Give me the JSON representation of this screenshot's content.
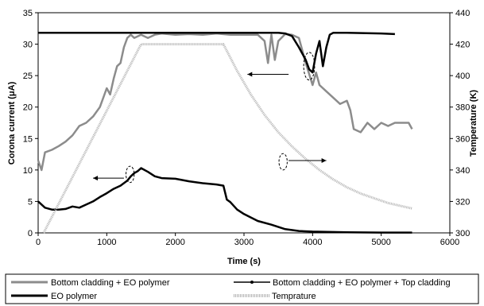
{
  "chart_data": {
    "type": "line",
    "x_label": "Time (s)",
    "y_left_label": "Corona current (μA)",
    "y_right_label": "Temperature (K)",
    "x_range": [
      0,
      6000
    ],
    "x_ticks": [
      "0",
      "1000",
      "2000",
      "3000",
      "4000",
      "5000",
      "6000"
    ],
    "y_left_range": [
      0,
      35
    ],
    "y_left_ticks": [
      "0",
      "5",
      "10",
      "15",
      "20",
      "25",
      "30",
      "35"
    ],
    "y_right_range": [
      300,
      440
    ],
    "y_right_ticks": [
      "300",
      "320",
      "340",
      "360",
      "380",
      "400",
      "420",
      "440"
    ],
    "grid": false,
    "legend_position": "bottom",
    "legend": [
      "Bottom cladding + EO polymer",
      "Bottom cladding + EO polymer + Top cladding",
      "EO polymer",
      "Temprature"
    ],
    "series": [
      {
        "name": "Bottom cladding + EO polymer",
        "axis": "left",
        "color": "#8c8c8c",
        "x": [
          0,
          50,
          100,
          200,
          300,
          400,
          500,
          600,
          700,
          800,
          900,
          1000,
          1050,
          1100,
          1150,
          1200,
          1250,
          1300,
          1350,
          1400,
          1500,
          1600,
          1700,
          1800,
          2000,
          2200,
          2400,
          2600,
          2800,
          3000,
          3200,
          3300,
          3350,
          3400,
          3450,
          3500,
          3600,
          3700,
          3800,
          3900,
          4000,
          4050,
          4100,
          4200,
          4300,
          4400,
          4500,
          4550,
          4600,
          4700,
          4800,
          4900,
          5000,
          5100,
          5200,
          5300,
          5400,
          5450
        ],
        "y": [
          11.5,
          10,
          12.8,
          13.2,
          13.8,
          14.5,
          15.5,
          17,
          17.5,
          18.5,
          20,
          23,
          22,
          24.5,
          26.5,
          27,
          29.5,
          31,
          31.5,
          31,
          31.5,
          31,
          31.5,
          31.7,
          31.5,
          31.6,
          31.5,
          31.7,
          31.5,
          31.5,
          31.5,
          30.5,
          27,
          31.5,
          27.5,
          30.5,
          31.6,
          31.5,
          31,
          27,
          23.5,
          25.5,
          23.5,
          22.5,
          21.5,
          20.5,
          21,
          19.5,
          16.5,
          16,
          17.5,
          16.5,
          17.5,
          17,
          17.5,
          17.5,
          17.5,
          16.5
        ]
      },
      {
        "name": "Bottom cladding + EO polymer + Top cladding",
        "axis": "left",
        "color": "#000000",
        "x": [
          0,
          500,
          1000,
          1500,
          2000,
          2500,
          3000,
          3500,
          3600,
          3700,
          3800,
          3900,
          3950,
          4000,
          4050,
          4100,
          4150,
          4200,
          4250,
          4300,
          4400,
          4500,
          5000,
          5200
        ],
        "y": [
          31.8,
          31.8,
          31.8,
          31.8,
          31.8,
          31.8,
          31.8,
          31.8,
          31.7,
          31.3,
          29.5,
          27.5,
          26,
          25.5,
          28.5,
          30.5,
          26.5,
          29.5,
          31.5,
          31.8,
          31.8,
          31.8,
          31.7,
          31.6
        ]
      },
      {
        "name": "EO polymer",
        "axis": "left",
        "color": "#000000",
        "x": [
          0,
          100,
          200,
          300,
          400,
          500,
          600,
          700,
          800,
          900,
          1000,
          1100,
          1200,
          1300,
          1350,
          1400,
          1450,
          1500,
          1600,
          1700,
          1800,
          2000,
          2200,
          2400,
          2600,
          2700,
          2750,
          2800,
          2900,
          3000,
          3200,
          3400,
          3600,
          3800,
          4000,
          4500,
          5000,
          5450
        ],
        "y": [
          5,
          4,
          3.7,
          3.7,
          3.8,
          4.2,
          4,
          4.5,
          5,
          5.7,
          6.3,
          7,
          7.5,
          8.3,
          9,
          9.5,
          9.8,
          10.3,
          9.7,
          9,
          8.7,
          8.6,
          8.2,
          7.9,
          7.7,
          7.5,
          5.3,
          4.9,
          3.7,
          3,
          1.9,
          1.3,
          0.6,
          0.3,
          0.2,
          0.1,
          0.05,
          0.05
        ]
      },
      {
        "name": "Temprature",
        "axis": "right",
        "color": "#b4b4b4",
        "x": [
          80,
          1500,
          2700,
          2900,
          3100,
          3300,
          3500,
          3700,
          3900,
          4100,
          4300,
          4500,
          4700,
          4900,
          5100,
          5300,
          5450
        ],
        "y": [
          300,
          420,
          420,
          403,
          388,
          375,
          364,
          355,
          347,
          340,
          334,
          329,
          325,
          322,
          319,
          317,
          315.5
        ]
      }
    ],
    "annotations": {
      "arrows": [
        {
          "from_x": 3650,
          "to_x": 3050,
          "y": 25.2,
          "axis": "left"
        },
        {
          "from_x": 1250,
          "to_x": 800,
          "y": 8.7,
          "axis": "left"
        },
        {
          "from_x": 3650,
          "to_x": 4200,
          "y": 11.5,
          "axis": "left"
        }
      ],
      "ellipses": [
        {
          "cx": 3950,
          "cy": 26.5,
          "rx": 80,
          "ry": 2.2
        },
        {
          "cx": 1340,
          "cy": 9.3,
          "rx": 60,
          "ry": 1.3
        },
        {
          "cx": 3570,
          "cy": 11.3,
          "rx": 60,
          "ry": 1.3
        }
      ]
    }
  }
}
